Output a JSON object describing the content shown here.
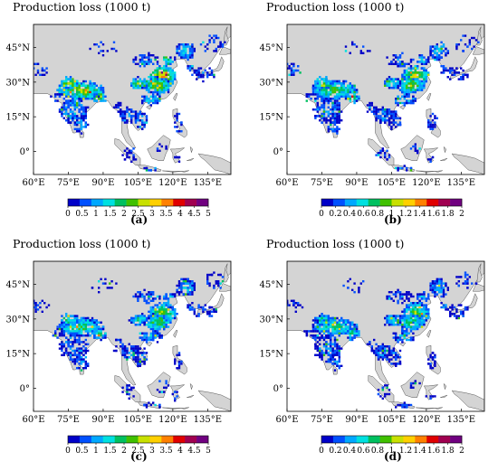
{
  "panels": [
    {
      "tag": "(a)",
      "title": "Production loss (1000 t)",
      "max": 5,
      "cb_ticks": [
        "0",
        "0.5",
        "1",
        "1.5",
        "2",
        "2.5",
        "3",
        "3.5",
        "4",
        "4.5",
        "5"
      ],
      "hotspot_intensity": 1.0
    },
    {
      "tag": "(b)",
      "title": "Production loss (1000 t)",
      "max": 2,
      "cb_ticks": [
        "0",
        "0.2",
        "0.4",
        "0.6",
        "0.8",
        "1",
        "1.2",
        "1.4",
        "1.6",
        "1.8",
        "2"
      ],
      "hotspot_intensity": 0.85
    },
    {
      "tag": "(c)",
      "title": "Production loss (1000 t)",
      "max": 5,
      "cb_ticks": [
        "0",
        "0.5",
        "1",
        "1.5",
        "2",
        "2.5",
        "3",
        "3.5",
        "4",
        "4.5",
        "5"
      ],
      "hotspot_intensity": 0.75
    },
    {
      "tag": "(d)",
      "title": "Production loss (1000 t)",
      "max": 2,
      "cb_ticks": [
        "0",
        "0.2",
        "0.4",
        "0.6",
        "0.8",
        "1",
        "1.2",
        "1.4",
        "1.6",
        "1.8",
        "2"
      ],
      "hotspot_intensity": 0.7
    }
  ],
  "lon_ticks": [
    "60°E",
    "75°E",
    "90°E",
    "105°E",
    "120°E",
    "135°E"
  ],
  "lat_ticks": [
    "45°N",
    "30°N",
    "15°N",
    "0°"
  ],
  "colors": {
    "land": "#d4d4d4",
    "ocean": "#ffffff",
    "colormap": [
      "#0000c8",
      "#0050ff",
      "#00a8ff",
      "#00e0e0",
      "#00c060",
      "#40c000",
      "#c8e000",
      "#ffd000",
      "#ff8000",
      "#e00000",
      "#a00050",
      "#700080"
    ]
  }
}
